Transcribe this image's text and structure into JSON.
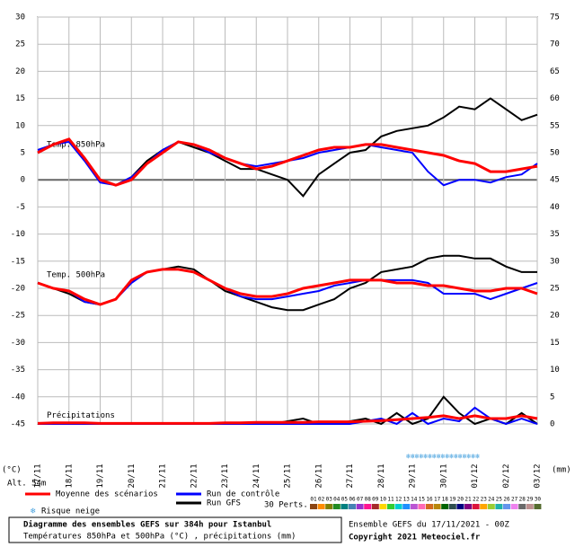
{
  "chart_data": {
    "type": "line",
    "title": "Diagramme des ensembles GEFS sur 384h pour Istanbul",
    "subtitle": "Températures 850hPa et 500hPa (°C) , précipitations (mm)",
    "run_info": "Ensemble GEFS du 17/11/2021 - 00Z",
    "copyright": "Copyright 2021 Meteociel.fr",
    "y_unit": "(°C)",
    "y2_unit": "(mm)",
    "altitude": "Alt. 54m",
    "snow_label": "Risque neige",
    "x": [
      0,
      12,
      24,
      36,
      48,
      60,
      72,
      84,
      96,
      108,
      120,
      132,
      144,
      156,
      168,
      180,
      192,
      204,
      216,
      228,
      240,
      252,
      264,
      276,
      288,
      300,
      312,
      324,
      336,
      348,
      360,
      372,
      384
    ],
    "xlim": [
      0,
      384
    ],
    "xticks": [
      {
        "value": 0,
        "label": "17/11"
      },
      {
        "value": 24,
        "label": "18/11"
      },
      {
        "value": 48,
        "label": "19/11"
      },
      {
        "value": 72,
        "label": "20/11"
      },
      {
        "value": 96,
        "label": "21/11"
      },
      {
        "value": 120,
        "label": "22/11"
      },
      {
        "value": 144,
        "label": "23/11"
      },
      {
        "value": 168,
        "label": "24/11"
      },
      {
        "value": 192,
        "label": "25/11"
      },
      {
        "value": 216,
        "label": "26/11"
      },
      {
        "value": 240,
        "label": "27/11"
      },
      {
        "value": 264,
        "label": "28/11"
      },
      {
        "value": 288,
        "label": "29/11"
      },
      {
        "value": 312,
        "label": "30/11"
      },
      {
        "value": 336,
        "label": "01/12"
      },
      {
        "value": 360,
        "label": "02/12"
      },
      {
        "value": 384,
        "label": "03/12"
      }
    ],
    "ylim": [
      -45,
      30
    ],
    "yticks": [
      -45,
      -40,
      -35,
      -30,
      -25,
      -20,
      -15,
      -10,
      -5,
      0,
      5,
      10,
      15,
      20,
      25,
      30
    ],
    "y2lim": [
      0,
      75
    ],
    "y2ticks": [
      0,
      5,
      10,
      15,
      20,
      25,
      30,
      35,
      40,
      45,
      50,
      55,
      60,
      65,
      70,
      75
    ],
    "grid": true,
    "legend": [
      {
        "name": "Moyenne des scénarios",
        "color": "#ff0000"
      },
      {
        "name": "Run de contrôle",
        "color": "#0000ff"
      },
      {
        "name": "Run GFS",
        "color": "#000000"
      }
    ],
    "panels": [
      {
        "label": "Temp. 850hPa",
        "axis": "y",
        "mean": [
          5,
          6.5,
          7.5,
          4,
          0,
          -1,
          0,
          3,
          5,
          7,
          6.5,
          5.5,
          4,
          3,
          2,
          2.5,
          3.5,
          4.5,
          5.5,
          6,
          6,
          6.5,
          6.5,
          6,
          5.5,
          5,
          4.5,
          3.5,
          3,
          1.5,
          1.5,
          2,
          2.5
        ],
        "control": [
          5.5,
          6.5,
          7,
          3.5,
          -0.5,
          -1,
          0.5,
          3,
          5.5,
          7,
          6.5,
          5,
          4,
          3,
          2.5,
          3,
          3.5,
          4,
          5,
          5.5,
          6,
          6.5,
          6,
          5.5,
          5,
          1.5,
          -1,
          0,
          0,
          -0.5,
          0.5,
          1,
          3
        ],
        "gfs": [
          5,
          6.5,
          7.5,
          4,
          0,
          -1,
          0.5,
          3.5,
          5.5,
          7,
          6,
          5,
          3.5,
          2,
          2,
          1,
          0,
          -3,
          1,
          3,
          5,
          5.5,
          8,
          9,
          9.5,
          10,
          11.5,
          13.5,
          13,
          15,
          13,
          11,
          12
        ]
      },
      {
        "label": "Temp. 500hPa",
        "axis": "y",
        "mean": [
          -19,
          -20,
          -20.5,
          -22,
          -23,
          -22,
          -18.5,
          -17,
          -16.5,
          -16.5,
          -17,
          -18.5,
          -20,
          -21,
          -21.5,
          -21.5,
          -21,
          -20,
          -19.5,
          -19,
          -18.5,
          -18.5,
          -18.5,
          -19,
          -19,
          -19.5,
          -19.5,
          -20,
          -20.5,
          -20.5,
          -20,
          -20,
          -21
        ],
        "control": [
          -19,
          -20,
          -20.5,
          -22.5,
          -23,
          -22,
          -19,
          -17,
          -16.5,
          -16.5,
          -17,
          -18.5,
          -20,
          -21.5,
          -22,
          -22,
          -21.5,
          -21,
          -20.5,
          -19.5,
          -19,
          -18.5,
          -18.5,
          -18.5,
          -18.5,
          -19,
          -21,
          -21,
          -21,
          -22,
          -21,
          -20,
          -19
        ],
        "gfs": [
          -19,
          -20,
          -21,
          -22.5,
          -23,
          -22,
          -18.5,
          -17,
          -16.5,
          -16,
          -16.5,
          -18.5,
          -20.5,
          -21.5,
          -22.5,
          -23.5,
          -24,
          -24,
          -23,
          -22,
          -20,
          -19,
          -17,
          -16.5,
          -16,
          -14.5,
          -14,
          -14,
          -14.5,
          -14.5,
          -16,
          -17,
          -17
        ]
      },
      {
        "label": "Précipitations",
        "axis": "y2",
        "mean": [
          0.1,
          0.2,
          0.2,
          0.2,
          0.1,
          0.1,
          0.1,
          0.1,
          0.1,
          0.1,
          0.1,
          0.1,
          0.2,
          0.2,
          0.3,
          0.3,
          0.3,
          0.3,
          0.4,
          0.4,
          0.4,
          0.5,
          0.6,
          0.8,
          1,
          1.2,
          1.5,
          1,
          1.5,
          1,
          1,
          1.5,
          1
        ],
        "control": [
          0,
          0,
          0,
          0,
          0,
          0,
          0,
          0,
          0,
          0,
          0,
          0,
          0,
          0,
          0,
          0,
          0,
          0,
          0,
          0,
          0,
          0.5,
          1,
          0,
          2,
          0,
          1,
          0.5,
          3,
          1,
          0,
          1,
          0
        ],
        "gfs": [
          0,
          0,
          0,
          0,
          0,
          0,
          0,
          0,
          0,
          0,
          0,
          0,
          0,
          0,
          0,
          0,
          0.5,
          1,
          0,
          0,
          0.5,
          1,
          0,
          2,
          0,
          1,
          5,
          2,
          0,
          1,
          0,
          2,
          0
        ]
      }
    ],
    "perturbations_label": "30 Perts.",
    "perturbations": [
      {
        "name": "01",
        "color": "#8b4513"
      },
      {
        "name": "02",
        "color": "#ff8c00"
      },
      {
        "name": "03",
        "color": "#808000"
      },
      {
        "name": "04",
        "color": "#228b22"
      },
      {
        "name": "05",
        "color": "#008080"
      },
      {
        "name": "06",
        "color": "#4682b4"
      },
      {
        "name": "07",
        "color": "#9932cc"
      },
      {
        "name": "08",
        "color": "#ff1493"
      },
      {
        "name": "09",
        "color": "#a52a2a"
      },
      {
        "name": "10",
        "color": "#ffd700"
      },
      {
        "name": "11",
        "color": "#32cd32"
      },
      {
        "name": "12",
        "color": "#00ced1"
      },
      {
        "name": "13",
        "color": "#1e90ff"
      },
      {
        "name": "14",
        "color": "#ba55d3"
      },
      {
        "name": "15",
        "color": "#ff69b4"
      },
      {
        "name": "16",
        "color": "#d2691e"
      },
      {
        "name": "17",
        "color": "#b8860b"
      },
      {
        "name": "18",
        "color": "#006400"
      },
      {
        "name": "19",
        "color": "#2f4f4f"
      },
      {
        "name": "20",
        "color": "#000080"
      },
      {
        "name": "21",
        "color": "#800080"
      },
      {
        "name": "22",
        "color": "#dc143c"
      },
      {
        "name": "23",
        "color": "#ffa500"
      },
      {
        "name": "24",
        "color": "#9acd32"
      },
      {
        "name": "25",
        "color": "#20b2aa"
      },
      {
        "name": "26",
        "color": "#6495ed"
      },
      {
        "name": "27",
        "color": "#ee82ee"
      },
      {
        "name": "28",
        "color": "#696969"
      },
      {
        "name": "29",
        "color": "#bc8f8f"
      },
      {
        "name": "30",
        "color": "#556b2f"
      }
    ]
  }
}
